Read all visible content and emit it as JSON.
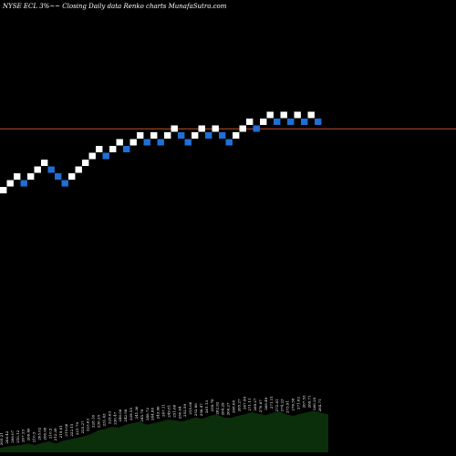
{
  "chart_data": {
    "type": "renko",
    "title": "NYSE ECL  3%~~  Closing Daily data  Renko  charts MunafaSutra.com",
    "colors": {
      "background": "#000000",
      "up_brick": "#ffffff",
      "down_brick": "#1f6fd6",
      "reference_line": "#c0522a",
      "volume_area": "#0b2e0b"
    },
    "bricks": [
      {
        "dir": "up",
        "level": 0
      },
      {
        "dir": "up",
        "level": 1
      },
      {
        "dir": "up",
        "level": 2
      },
      {
        "dir": "down",
        "level": 1
      },
      {
        "dir": "up",
        "level": 2
      },
      {
        "dir": "up",
        "level": 3
      },
      {
        "dir": "up",
        "level": 4
      },
      {
        "dir": "down",
        "level": 3
      },
      {
        "dir": "down",
        "level": 2
      },
      {
        "dir": "down",
        "level": 1
      },
      {
        "dir": "up",
        "level": 2
      },
      {
        "dir": "up",
        "level": 3
      },
      {
        "dir": "up",
        "level": 4
      },
      {
        "dir": "up",
        "level": 5
      },
      {
        "dir": "up",
        "level": 6
      },
      {
        "dir": "down",
        "level": 5
      },
      {
        "dir": "up",
        "level": 6
      },
      {
        "dir": "up",
        "level": 7
      },
      {
        "dir": "down",
        "level": 6
      },
      {
        "dir": "up",
        "level": 7
      },
      {
        "dir": "up",
        "level": 8
      },
      {
        "dir": "down",
        "level": 7
      },
      {
        "dir": "up",
        "level": 8
      },
      {
        "dir": "down",
        "level": 7
      },
      {
        "dir": "up",
        "level": 8
      },
      {
        "dir": "up",
        "level": 9
      },
      {
        "dir": "down",
        "level": 8
      },
      {
        "dir": "down",
        "level": 7
      },
      {
        "dir": "up",
        "level": 8
      },
      {
        "dir": "up",
        "level": 9
      },
      {
        "dir": "down",
        "level": 8
      },
      {
        "dir": "up",
        "level": 9
      },
      {
        "dir": "down",
        "level": 8
      },
      {
        "dir": "down",
        "level": 7
      },
      {
        "dir": "up",
        "level": 8
      },
      {
        "dir": "up",
        "level": 9
      },
      {
        "dir": "up",
        "level": 10
      },
      {
        "dir": "down",
        "level": 9
      },
      {
        "dir": "up",
        "level": 10
      },
      {
        "dir": "up",
        "level": 11
      },
      {
        "dir": "down",
        "level": 10
      },
      {
        "dir": "up",
        "level": 11
      },
      {
        "dir": "down",
        "level": 10
      },
      {
        "dir": "up",
        "level": 11
      },
      {
        "dir": "down",
        "level": 10
      },
      {
        "dir": "up",
        "level": 11
      },
      {
        "dir": "down",
        "level": 10
      }
    ],
    "reference_price_level": 8.5,
    "volume_profile": [
      6,
      8,
      9,
      10,
      12,
      10,
      13,
      15,
      12,
      16,
      18,
      20,
      22,
      25,
      30,
      32,
      35,
      34,
      38,
      40,
      42,
      38,
      40,
      42,
      45,
      44,
      42,
      45,
      48,
      46,
      50,
      52,
      48,
      47,
      50,
      52,
      55,
      53,
      51,
      54,
      56,
      52,
      50,
      53,
      55,
      57,
      54,
      52
    ],
    "price_labels": [
      "205.21",
      "206.42",
      "208.07",
      "210.12",
      "207.35",
      "208.46",
      "210.5",
      "205.62",
      "206.98",
      "210.5",
      "212.39",
      "219.81",
      "215.06",
      "222.15",
      "221.79",
      "225.27",
      "223.63",
      "228.16",
      "230.35",
      "231.43",
      "229.63",
      "236.47",
      "240.06",
      "242.58",
      "239.55",
      "241.36",
      "245.78",
      "248.72",
      "244.88",
      "243.96",
      "247.11",
      "249.81",
      "251.68",
      "250.04",
      "252.59",
      "255.66",
      "253.86",
      "258.47",
      "261.13",
      "259.78",
      "262.92",
      "264.29",
      "266.27",
      "268.08",
      "265.27",
      "267.99",
      "271.11",
      "269.27",
      "270.87",
      "268.49",
      "271.11",
      "272.81",
      "274.23",
      "273.91",
      "276.58",
      "271.62",
      "267.53",
      "268.71",
      "266.25",
      "264.71"
    ]
  }
}
